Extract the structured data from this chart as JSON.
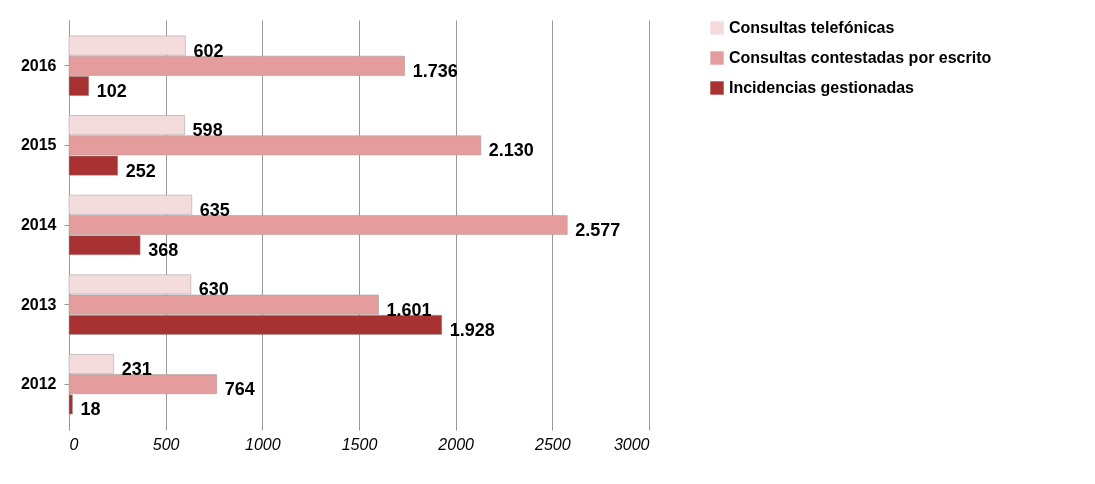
{
  "chart_data": {
    "type": "bar",
    "orientation": "horizontal",
    "categories": [
      "2016",
      "2015",
      "2014",
      "2013",
      "2012"
    ],
    "series": [
      {
        "name": "Consultas telefónicas",
        "color": "#f5dcdc",
        "values": [
          602,
          598,
          635,
          630,
          231
        ],
        "value_labels": [
          "602",
          "598",
          "635",
          "630",
          "231"
        ]
      },
      {
        "name": "Consultas contestadas por escrito",
        "color": "#e59c9c",
        "values": [
          1736,
          2130,
          2577,
          1601,
          764
        ],
        "value_labels": [
          "1.736",
          "2.130",
          "2.577",
          "1.601",
          "764"
        ]
      },
      {
        "name": "Incidencias gestionadas",
        "color": "#a83232",
        "values": [
          102,
          252,
          368,
          1928,
          18
        ],
        "value_labels": [
          "102",
          "252",
          "368",
          "1.928",
          "18"
        ]
      }
    ],
    "xlim": [
      0,
      3000
    ],
    "xticks": [
      0,
      500,
      1000,
      1500,
      2000,
      2500,
      3000
    ],
    "grid": "x",
    "legend": "right"
  }
}
